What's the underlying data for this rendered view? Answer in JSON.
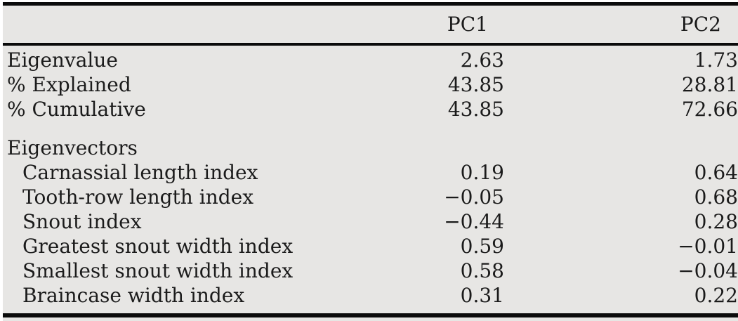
{
  "table": {
    "header": {
      "pc1": "PC1",
      "pc2": "PC2"
    },
    "summary_rows": [
      {
        "label": "Eigenvalue",
        "pc1": "2.63",
        "pc2": "1.73"
      },
      {
        "label": "% Explained",
        "pc1": "43.85",
        "pc2": "28.81"
      },
      {
        "label": "% Cumulative",
        "pc1": "43.85",
        "pc2": "72.66"
      }
    ],
    "section_header": "Eigenvectors",
    "eigenvector_rows": [
      {
        "label": "Carnassial length index",
        "pc1": "0.19",
        "pc2": "0.64"
      },
      {
        "label": "Tooth-row length index",
        "pc1": "−0.05",
        "pc2": "0.68"
      },
      {
        "label": "Snout index",
        "pc1": "−0.44",
        "pc2": "0.28"
      },
      {
        "label": "Greatest snout width index",
        "pc1": "0.59",
        "pc2": "−0.01"
      },
      {
        "label": "Smallest snout width index",
        "pc1": "0.58",
        "pc2": "−0.04"
      },
      {
        "label": "Braincase width index",
        "pc1": "0.31",
        "pc2": "0.22"
      }
    ],
    "colors": {
      "background": "#e7e6e4",
      "page": "#ffffff",
      "rule": "#0b0b0b",
      "text": "#1b1b1b"
    }
  }
}
